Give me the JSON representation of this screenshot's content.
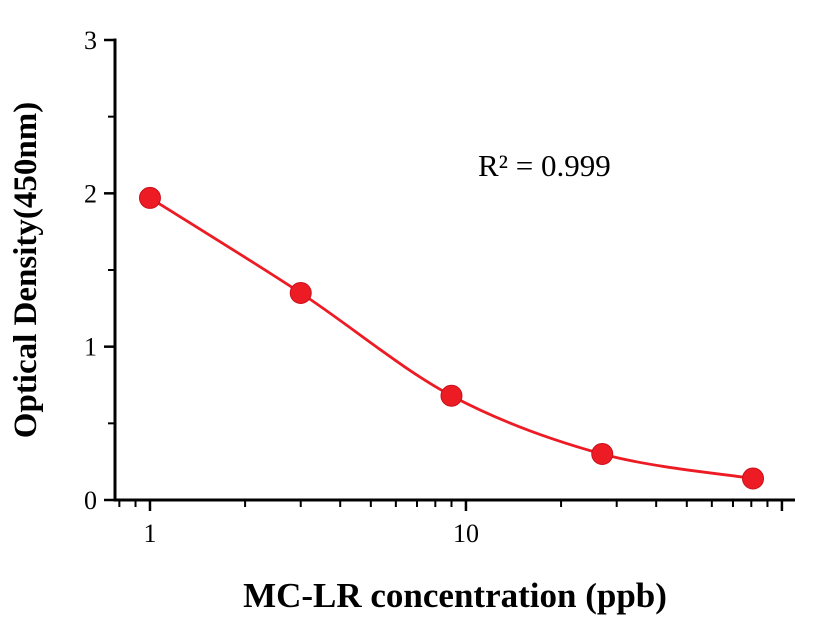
{
  "figure": {
    "background": "#ffffff"
  },
  "chart_data": {
    "type": "line",
    "title": "",
    "xlabel": "MC-LR concentration (ppb)",
    "ylabel": "Optical Density(450nm)",
    "annotation": "R² = 0.999",
    "x_scale": "log",
    "x": [
      1,
      3,
      9,
      27,
      81
    ],
    "y": [
      1.97,
      1.35,
      0.68,
      0.3,
      0.14
    ],
    "xlim": [
      0.775,
      110
    ],
    "ylim": [
      0,
      3
    ],
    "x_ticks": [
      {
        "v": 1,
        "label": "1"
      },
      {
        "v": 10,
        "label": "10"
      },
      {
        "v": 100,
        "label": ""
      }
    ],
    "y_ticks": [
      {
        "v": 0,
        "label": "0"
      },
      {
        "v": 1,
        "label": "1"
      },
      {
        "v": 2,
        "label": "2"
      },
      {
        "v": 3,
        "label": "3"
      }
    ],
    "y_minor_ticks": [
      0.5,
      1.5,
      2.5
    ],
    "grid": false,
    "legend": null,
    "line_color": "#ed1c24",
    "marker_color": "#ed1c24",
    "marker_edge_color": "#c8101a",
    "axis_color": "#000000",
    "text_color": "#000000"
  }
}
